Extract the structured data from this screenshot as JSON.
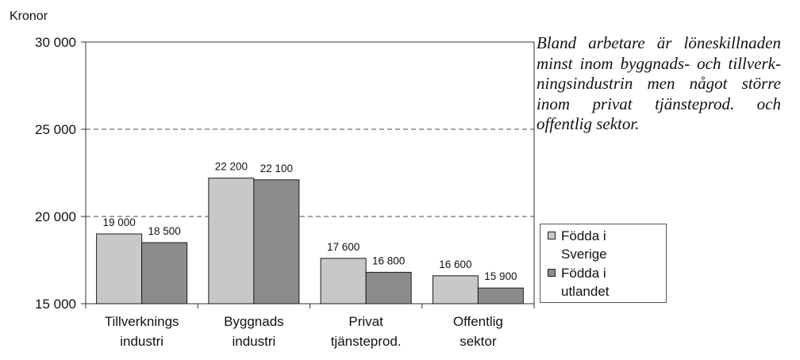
{
  "chart_data": {
    "type": "bar",
    "ylabel": "Kronor",
    "ylim": [
      15000,
      30000
    ],
    "yticks": [
      15000,
      20000,
      25000,
      30000
    ],
    "ytick_labels": [
      "15 000",
      "20 000",
      "25 000",
      "30 000"
    ],
    "grid": "horizontal dashed at 20 000 and 25 000",
    "categories": [
      [
        "Tillverknings",
        "industri"
      ],
      [
        "Byggnads",
        "industri"
      ],
      [
        "Privat",
        "tjänsteprod."
      ],
      [
        "Offentlig",
        "sektor"
      ]
    ],
    "series": [
      {
        "name": "Födda i Sverige",
        "color": "#c8c8c8",
        "values": [
          19000,
          22200,
          17600,
          16600
        ],
        "labels": [
          "19 000",
          "22 200",
          "17 600",
          "16 600"
        ]
      },
      {
        "name": "Födda i utlandet",
        "color": "#8c8c8c",
        "values": [
          18500,
          22100,
          16800,
          15900
        ],
        "labels": [
          "18 500",
          "22 100",
          "16 800",
          "15 900"
        ]
      }
    ],
    "legend": {
      "placement": "right",
      "entries": [
        [
          "Födda i",
          "Sverige"
        ],
        [
          "Födda i",
          "utlandet"
        ]
      ]
    }
  },
  "commentary": "Bland arbetare är löne­skillnaden minst inom byggnads- och tillverk­ningsindustrin men något större inom privat tjänste­prod. och offentlig sektor."
}
